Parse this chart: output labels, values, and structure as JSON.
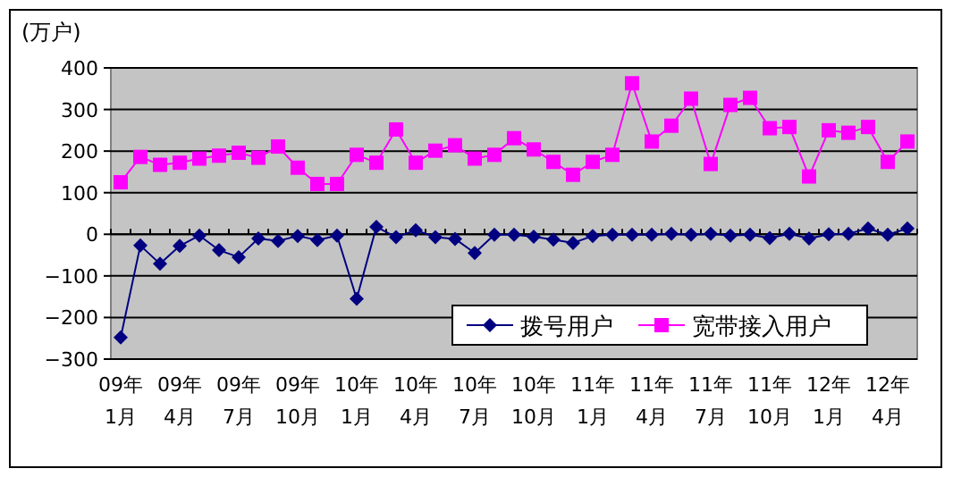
{
  "chart_data": {
    "type": "line",
    "ylabel": "(万户)",
    "categories": [
      "09年 1月",
      null,
      null,
      "09年 4月",
      null,
      null,
      "09年 7月",
      null,
      null,
      "09年 10月",
      null,
      null,
      "10年 1月",
      null,
      null,
      "10年 4月",
      null,
      null,
      "10年 7月",
      null,
      null,
      "10年 10月",
      null,
      null,
      "11年 1月",
      null,
      null,
      "11年 4月",
      null,
      null,
      "11年 7月",
      null,
      null,
      "11年 10月",
      null,
      null,
      "12年 1月",
      null,
      null,
      "12年 4月",
      null
    ],
    "series": [
      {
        "name": "拨号用户",
        "color": "#000080",
        "marker": "diamond",
        "values": [
          -248,
          -27,
          -71,
          -28,
          -3,
          -38,
          -55,
          -10,
          -16,
          -4,
          -14,
          -3,
          -155,
          18,
          -7,
          10,
          -7,
          -11,
          -45,
          -1,
          -1,
          -6,
          -13,
          -21,
          -4,
          -1,
          -1,
          -1,
          1,
          -1,
          1,
          -3,
          -1,
          -9,
          1,
          -10,
          0,
          1,
          14,
          -1,
          14
        ]
      },
      {
        "name": "宽带接入用户",
        "color": "#ff00ff",
        "marker": "square",
        "values": [
          125,
          186,
          167,
          172,
          182,
          189,
          196,
          184,
          211,
          160,
          121,
          121,
          191,
          172,
          252,
          172,
          201,
          214,
          182,
          191,
          231,
          204,
          174,
          143,
          174,
          191,
          363,
          223,
          261,
          326,
          169,
          311,
          328,
          255,
          258,
          139,
          250,
          244,
          258,
          174,
          223
        ]
      }
    ],
    "ylim": [
      -300,
      400
    ],
    "yticks": [
      -300,
      -200,
      -100,
      0,
      100,
      200,
      300,
      400
    ],
    "grid": "y",
    "legend": "bottom right"
  }
}
